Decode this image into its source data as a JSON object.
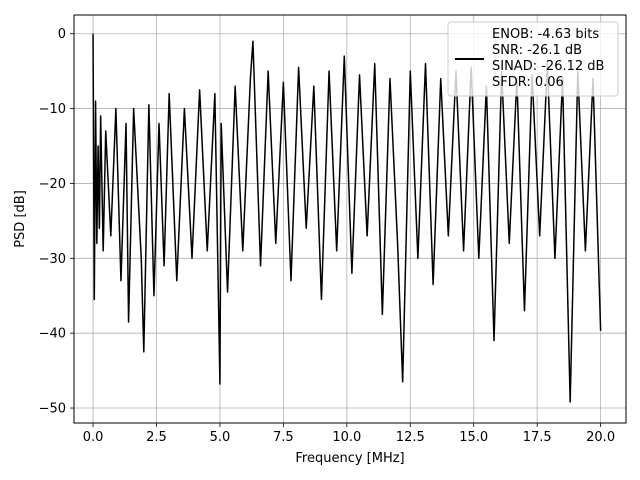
{
  "chart_data": {
    "type": "line",
    "xlabel": "Frequency [MHz]",
    "ylabel": "PSD [dB]",
    "xlim": [
      -0.75,
      21.0
    ],
    "ylim": [
      -52.0,
      2.5
    ],
    "x_ticks": [
      0.0,
      2.5,
      5.0,
      7.5,
      10.0,
      12.5,
      15.0,
      17.5,
      20.0
    ],
    "x_tick_labels": [
      "0.0",
      "2.5",
      "5.0",
      "7.5",
      "10.0",
      "12.5",
      "15.0",
      "17.5",
      "20.0"
    ],
    "y_ticks": [
      0,
      -10,
      -20,
      -30,
      -40,
      -50
    ],
    "y_tick_labels": [
      "0",
      "−10",
      "−20",
      "−30",
      "−40",
      "−50"
    ],
    "grid": true,
    "legend_position": "top-right",
    "legend_lines": [
      "ENOB: -4.63 bits",
      "SNR: -26.1 dB",
      "SINAD: -26.12 dB",
      "SFDR: 0.06"
    ],
    "line_color": "#000000",
    "series": [
      {
        "x": [
          0.0,
          0.05,
          0.1,
          0.15,
          0.2,
          0.25,
          0.3,
          0.4,
          0.5,
          0.7,
          0.9,
          1.1,
          1.3,
          1.4,
          1.6,
          1.9,
          2.0,
          2.2,
          2.4,
          2.6,
          2.8,
          3.0,
          3.3,
          3.6,
          3.9,
          4.2,
          4.5,
          4.8,
          5.0,
          5.05,
          5.3,
          5.6,
          5.9,
          6.2,
          6.3,
          6.6,
          6.9,
          7.2,
          7.5,
          7.8,
          8.1,
          8.4,
          8.7,
          9.0,
          9.3,
          9.6,
          9.9,
          10.2,
          10.5,
          10.8,
          11.1,
          11.4,
          11.7,
          12.0,
          12.2,
          12.5,
          12.8,
          13.1,
          13.4,
          13.7,
          14.0,
          14.3,
          14.6,
          14.9,
          15.2,
          15.5,
          15.8,
          16.1,
          16.4,
          16.7,
          17.0,
          17.3,
          17.6,
          17.9,
          18.2,
          18.5,
          18.8,
          19.1,
          19.4,
          19.7,
          20.0
        ],
        "y": [
          0.0,
          -35.5,
          -9.0,
          -28.0,
          -15.0,
          -26.0,
          -11.0,
          -29.0,
          -13.0,
          -27.0,
          -10.0,
          -33.0,
          -12.0,
          -38.5,
          -10.0,
          -30.0,
          -42.5,
          -9.5,
          -35.0,
          -12.0,
          -31.0,
          -8.0,
          -33.0,
          -10.0,
          -30.0,
          -7.5,
          -29.0,
          -8.0,
          -46.8,
          -12.0,
          -34.5,
          -7.0,
          -29.0,
          -6.0,
          -1.0,
          -31.0,
          -5.0,
          -28.0,
          -6.5,
          -33.0,
          -4.5,
          -26.0,
          -7.0,
          -35.5,
          -5.0,
          -29.0,
          -3.0,
          -32.0,
          -5.5,
          -27.0,
          -4.0,
          -37.5,
          -6.0,
          -28.0,
          -46.5,
          -5.0,
          -30.0,
          -4.0,
          -33.5,
          -6.0,
          -27.0,
          -5.0,
          -29.0,
          -4.5,
          -30.0,
          -7.0,
          -41.0,
          -5.0,
          -28.0,
          -6.0,
          -37.0,
          -5.5,
          -27.0,
          -4.0,
          -30.0,
          -6.0,
          -49.2,
          -5.0,
          -29.0,
          -6.0,
          -39.7
        ]
      }
    ]
  }
}
